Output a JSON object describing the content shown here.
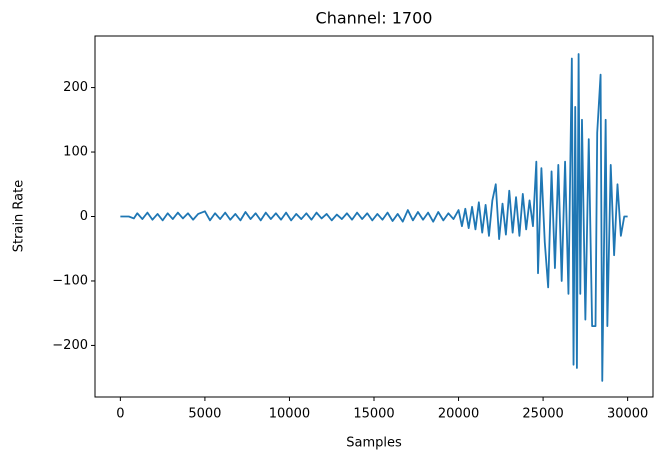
{
  "chart_data": {
    "type": "line",
    "title": "Channel: 1700",
    "xlabel": "Samples",
    "ylabel": "Strain Rate",
    "color": "#1f77b4",
    "grid": false,
    "x": [
      0,
      500,
      800,
      1000,
      1300,
      1600,
      1900,
      2200,
      2500,
      2800,
      3100,
      3400,
      3700,
      4000,
      4300,
      4600,
      5000,
      5300,
      5600,
      5900,
      6200,
      6500,
      6800,
      7100,
      7400,
      7700,
      8000,
      8300,
      8600,
      8900,
      9200,
      9500,
      9800,
      10100,
      10400,
      10700,
      11000,
      11300,
      11600,
      11900,
      12200,
      12500,
      12800,
      13100,
      13400,
      13700,
      14000,
      14300,
      14600,
      14900,
      15200,
      15500,
      15800,
      16100,
      16400,
      16700,
      17000,
      17300,
      17600,
      17900,
      18200,
      18500,
      18800,
      19100,
      19400,
      19700,
      20000,
      20200,
      20400,
      20600,
      20800,
      21000,
      21200,
      21400,
      21600,
      21800,
      22000,
      22200,
      22400,
      22600,
      22800,
      23000,
      23200,
      23400,
      23600,
      23800,
      24000,
      24200,
      24400,
      24600,
      24700,
      24900,
      25100,
      25300,
      25500,
      25700,
      25900,
      26100,
      26300,
      26500,
      26700,
      26800,
      26900,
      27000,
      27100,
      27200,
      27300,
      27500,
      27700,
      27900,
      28100,
      28200,
      28400,
      28500,
      28700,
      28800,
      29000,
      29200,
      29400,
      29600,
      29800,
      30000
    ],
    "values": [
      0,
      0,
      -3,
      5,
      -4,
      6,
      -5,
      4,
      -6,
      5,
      -4,
      6,
      -3,
      5,
      -5,
      4,
      8,
      -6,
      5,
      -4,
      6,
      -5,
      4,
      -6,
      7,
      -4,
      5,
      -6,
      6,
      -4,
      5,
      -5,
      6,
      -6,
      4,
      -4,
      5,
      -5,
      6,
      -3,
      4,
      -6,
      3,
      -4,
      5,
      -5,
      6,
      -4,
      5,
      -6,
      4,
      -5,
      6,
      -7,
      4,
      -8,
      10,
      -6,
      7,
      -5,
      6,
      -8,
      7,
      -6,
      5,
      -4,
      10,
      -15,
      12,
      -18,
      15,
      -20,
      22,
      -25,
      18,
      -30,
      25,
      50,
      -35,
      20,
      -28,
      40,
      -25,
      30,
      -30,
      35,
      -20,
      25,
      -15,
      85,
      -88,
      75,
      -40,
      -110,
      70,
      -80,
      80,
      -100,
      85,
      -120,
      245,
      -230,
      170,
      -235,
      252,
      -120,
      150,
      -160,
      120,
      -170,
      -170,
      130,
      220,
      -255,
      150,
      -170,
      80,
      -60,
      50,
      -30,
      0,
      0
    ],
    "xlim": [
      -1500,
      31500
    ],
    "ylim": [
      -280,
      280
    ],
    "xticks": [
      0,
      5000,
      10000,
      15000,
      20000,
      25000,
      30000
    ],
    "yticks": [
      {
        "value": -200,
        "label": "−200"
      },
      {
        "value": -100,
        "label": "−100"
      },
      0,
      100,
      200
    ]
  }
}
